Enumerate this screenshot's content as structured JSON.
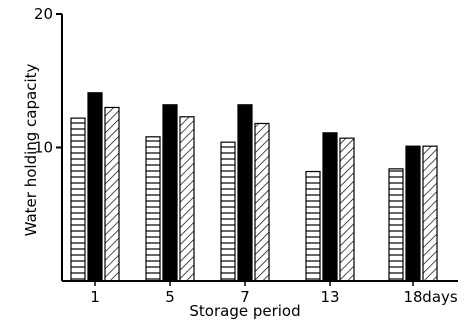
{
  "chart_data": {
    "type": "bar",
    "xlabel": "Storage period",
    "x_unit": "days",
    "ylabel": "Water holding capacity",
    "ylim": [
      0,
      20
    ],
    "yticks": [
      10,
      20
    ],
    "categories": [
      "1",
      "5",
      "7",
      "13",
      "18"
    ],
    "series": [
      {
        "pattern": "horizontal-hatch",
        "fill": "#ffffff",
        "values": [
          12.2,
          10.8,
          10.4,
          8.2,
          8.4
        ]
      },
      {
        "pattern": "solid",
        "fill": "#000000",
        "values": [
          14.1,
          13.2,
          13.2,
          11.1,
          10.1
        ]
      },
      {
        "pattern": "diagonal-hatch",
        "fill": "#ffffff",
        "values": [
          13.0,
          12.3,
          11.8,
          10.7,
          10.1
        ]
      }
    ],
    "grid": false,
    "legend": "none"
  }
}
